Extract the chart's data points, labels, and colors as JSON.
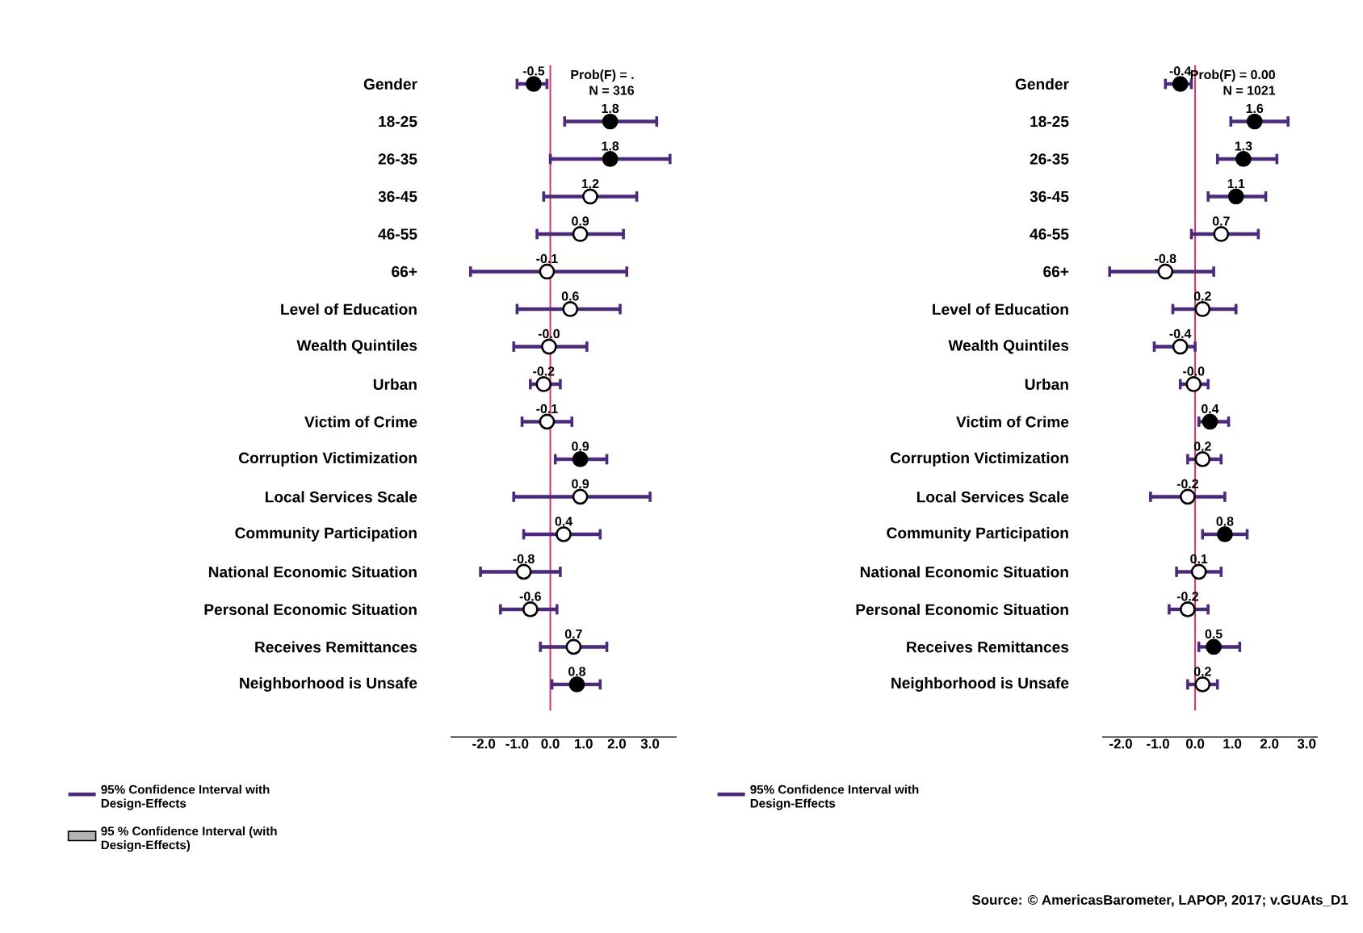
{
  "chart_data": [
    {
      "type": "scatter",
      "orientation": "horizontal",
      "categories": [
        "Gender",
        "18-25",
        "26-35",
        "36-45",
        "46-55",
        "66+",
        "Level of Education",
        "Wealth Quintiles",
        "Urban",
        "Victim of Crime",
        "Corruption Victimization",
        "Local Services Scale",
        "Community Participation",
        "National Economic Situation",
        "Personal Economic Situation",
        "Receives Remittances",
        "Neighborhood is Unsafe"
      ],
      "xlim": [
        -3,
        3.8
      ],
      "xticks": [
        {
          "value": -2,
          "label": "-2.0"
        },
        {
          "value": -1,
          "label": "-1.0"
        },
        {
          "value": 0,
          "label": "0.0"
        },
        {
          "value": 1,
          "label": "1.0"
        },
        {
          "value": 2,
          "label": "2.0"
        },
        {
          "value": 3,
          "label": "3.0"
        }
      ],
      "marker": "circle",
      "legend": "bottom left",
      "ref_lines": [
        {
          "axis": "x",
          "value": 0,
          "color": "#d6336c"
        }
      ],
      "annotations": [
        "Prob(F) = .",
        "N = 316"
      ],
      "series": [
        {
          "name": "95% Confidence Interval with Design-Effects",
          "color": "#4b2a7b",
          "values": [
            -0.5,
            1.8,
            1.8,
            1.2,
            0.9,
            -0.1,
            0.6,
            -0.04,
            -0.2,
            -0.1,
            0.9,
            0.9,
            0.4,
            -0.8,
            -0.6,
            0.7,
            0.8
          ],
          "errors": [
            [
              -1.0,
              -0.1
            ],
            [
              0.43,
              3.2
            ],
            [
              0.0,
              3.6
            ],
            [
              -0.2,
              2.6
            ],
            [
              -0.4,
              2.2
            ],
            [
              -2.4,
              2.3
            ],
            [
              -1.0,
              2.1
            ],
            [
              -1.1,
              1.1
            ],
            [
              -0.6,
              0.3
            ],
            [
              -0.85,
              0.65
            ],
            [
              0.15,
              1.7
            ],
            [
              -1.1,
              3.0
            ],
            [
              -0.8,
              1.5
            ],
            [
              -2.1,
              0.3
            ],
            [
              -1.5,
              0.2
            ],
            [
              -0.3,
              1.7
            ],
            [
              0.05,
              1.5
            ]
          ],
          "colors": [
            "#000000",
            "#000000",
            "#000000",
            "#ffffff",
            "#ffffff",
            "#ffffff",
            "#ffffff",
            "#ffffff",
            "#ffffff",
            "#ffffff",
            "#000000",
            "#ffffff",
            "#ffffff",
            "#ffffff",
            "#ffffff",
            "#ffffff",
            "#000000"
          ],
          "value_labels": [
            "-0.5",
            "1.8",
            "1.8",
            "1.2",
            "0.9",
            "-0.1",
            "0.6",
            "-0.0",
            "-0.2",
            "-0.1",
            "0.9",
            "0.9",
            "0.4",
            "-0.8",
            "-0.6",
            "0.7",
            "0.8"
          ]
        },
        {
          "name": "95 % Confidence Interval (with Design-Effects)",
          "type": "bar",
          "color": "#b3b3b3",
          "values": [
            null,
            null,
            null,
            null,
            null,
            null,
            null,
            null,
            null,
            null,
            null,
            null,
            null,
            null,
            null,
            null,
            null
          ]
        }
      ]
    },
    {
      "type": "scatter",
      "orientation": "horizontal",
      "categories": [
        "Gender",
        "18-25",
        "26-35",
        "36-45",
        "46-55",
        "66+",
        "Level of Education",
        "Wealth Quintiles",
        "Urban",
        "Victim of Crime",
        "Corruption Victimization",
        "Local Services Scale",
        "Community Participation",
        "National Economic Situation",
        "Personal Economic Situation",
        "Receives Remittances",
        "Neighborhood is Unsafe"
      ],
      "xlim": [
        -2.5,
        3.3
      ],
      "xticks": [
        {
          "value": -2,
          "label": "-2.0"
        },
        {
          "value": -1,
          "label": "-1.0"
        },
        {
          "value": 0,
          "label": "0.0"
        },
        {
          "value": 1,
          "label": "1.0"
        },
        {
          "value": 2,
          "label": "2.0"
        },
        {
          "value": 3,
          "label": "3.0"
        }
      ],
      "marker": "circle",
      "legend": "bottom left",
      "ref_lines": [
        {
          "axis": "x",
          "value": 0,
          "color": "#d6336c"
        }
      ],
      "annotations": [
        "Prob(F) = 0.00",
        "N = 1021",
        "Source: © AmericasBarometer, LAPOP, 2017; v.GUAts_D1"
      ],
      "series": [
        {
          "name": "95% Confidence Interval with Design-Effects",
          "color": "#4b2a7b",
          "values": [
            -0.4,
            1.6,
            1.3,
            1.1,
            0.7,
            -0.8,
            0.2,
            -0.4,
            -0.04,
            0.4,
            0.2,
            -0.2,
            0.8,
            0.1,
            -0.2,
            0.5,
            0.2
          ],
          "errors": [
            [
              -0.8,
              -0.1
            ],
            [
              0.96,
              2.5
            ],
            [
              0.6,
              2.2
            ],
            [
              0.35,
              1.9
            ],
            [
              -0.1,
              1.7
            ],
            [
              -2.3,
              0.5
            ],
            [
              -0.6,
              1.1
            ],
            [
              -1.1,
              0.0
            ],
            [
              -0.4,
              0.35
            ],
            [
              0.1,
              0.9
            ],
            [
              -0.2,
              0.7
            ],
            [
              -1.2,
              0.8
            ],
            [
              0.2,
              1.4
            ],
            [
              -0.5,
              0.7
            ],
            [
              -0.7,
              0.35
            ],
            [
              0.1,
              1.2
            ],
            [
              -0.2,
              0.6
            ]
          ],
          "colors": [
            "#000000",
            "#000000",
            "#000000",
            "#000000",
            "#ffffff",
            "#ffffff",
            "#ffffff",
            "#ffffff",
            "#ffffff",
            "#000000",
            "#ffffff",
            "#ffffff",
            "#000000",
            "#ffffff",
            "#ffffff",
            "#000000",
            "#ffffff"
          ],
          "value_labels": [
            "-0.4",
            "1.6",
            "1.3",
            "1.1",
            "0.7",
            "-0.8",
            "0.2",
            "-0.4",
            "-0.0",
            "0.4",
            "0.2",
            "-0.2",
            "0.8",
            "0.1",
            "-0.2",
            "0.5",
            "0.2"
          ]
        }
      ]
    }
  ]
}
